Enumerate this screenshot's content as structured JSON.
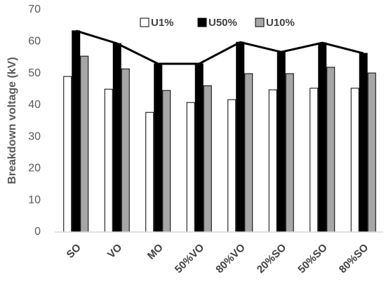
{
  "chart_data": {
    "type": "bar",
    "y_label": "Breakdown voltage (kV)",
    "categories": [
      "SO",
      "VO",
      "MO",
      "50%VO",
      "80%VO",
      "20%SO",
      "50%SO",
      "80%SO"
    ],
    "series": [
      {
        "name": "U1%",
        "color": "#ffffff",
        "values": [
          49.0,
          45.0,
          37.7,
          40.8,
          41.7,
          44.8,
          45.3,
          45.3
        ]
      },
      {
        "name": "U50%",
        "color": "#000000",
        "values": [
          63.4,
          59.4,
          53.0,
          53.0,
          59.8,
          56.7,
          59.6,
          56.3
        ]
      },
      {
        "name": "U10%",
        "color": "#a6a6a6",
        "values": [
          55.4,
          51.4,
          44.6,
          46.1,
          49.9,
          49.9,
          51.9,
          50.1
        ]
      }
    ],
    "ylim": [
      0,
      70
    ],
    "yticks": [
      0,
      10,
      20,
      30,
      40,
      50,
      60,
      70
    ],
    "grid": false
  }
}
